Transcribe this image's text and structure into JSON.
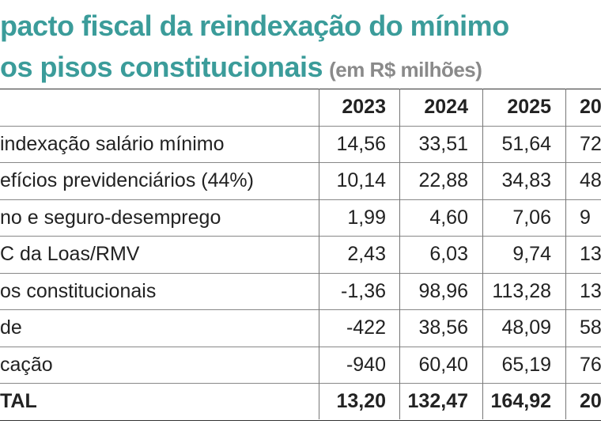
{
  "header": {
    "title_line1": "pacto fiscal da reindexação do mínimo",
    "title_line2": "os pisos constitucionais",
    "unit": "(em R$ milhões)"
  },
  "table": {
    "columns": [
      "2023",
      "2024",
      "2025",
      "20"
    ],
    "rows": [
      [
        "indexação salário mínimo",
        "14,56",
        "33,51",
        "51,64",
        "72"
      ],
      [
        "efícios previdenciários (44%)",
        "10,14",
        "22,88",
        "34,83",
        "48"
      ],
      [
        "no e seguro-desemprego",
        "1,99",
        "4,60",
        "7,06",
        "9"
      ],
      [
        "C da Loas/RMV",
        "2,43",
        "6,03",
        "9,74",
        "13"
      ],
      [
        "os constitucionais",
        "-1,36",
        "98,96",
        "113,28",
        "13"
      ],
      [
        "de",
        "-422",
        "38,56",
        "48,09",
        "58"
      ],
      [
        "cação",
        "-940",
        "60,40",
        "65,19",
        "76"
      ],
      [
        "TAL",
        "13,20",
        "132,47",
        "164,92",
        "20"
      ]
    ]
  }
}
